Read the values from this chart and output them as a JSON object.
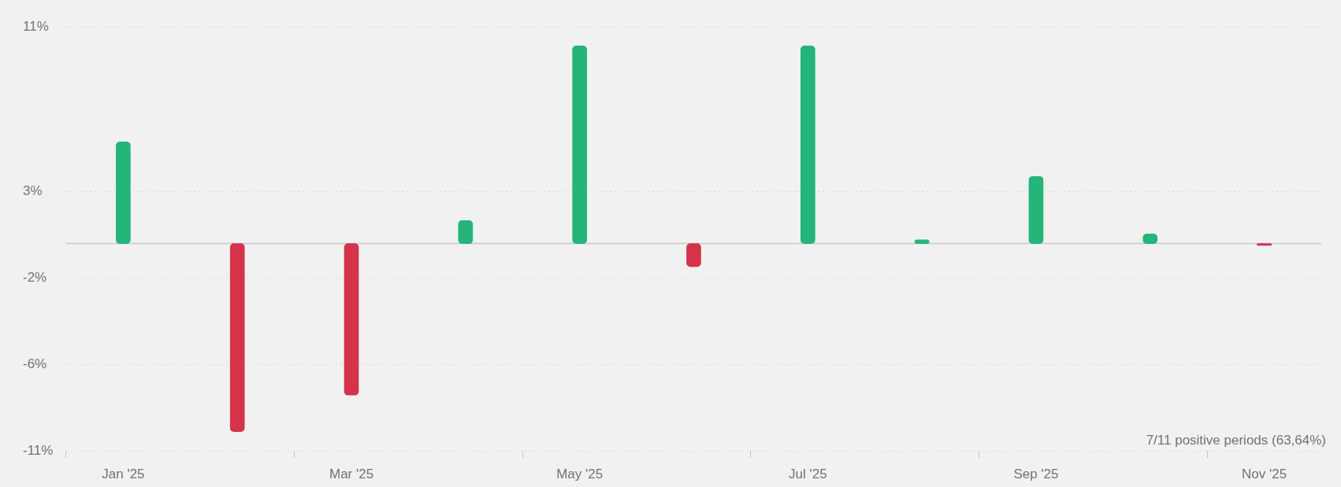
{
  "chart_data": {
    "type": "bar",
    "categories": [
      "Jan '25",
      null,
      "Mar '25",
      null,
      "May '25",
      null,
      "Jul '25",
      null,
      "Sep '25",
      null,
      "Nov '25"
    ],
    "values": [
      5.3,
      -9.8,
      -7.9,
      1.2,
      10.3,
      -1.2,
      10.3,
      0.2,
      3.5,
      0.5,
      -0.1
    ],
    "colors": [
      "#25b47a",
      "#d4334a",
      "#d4334a",
      "#25b47a",
      "#25b47a",
      "#d4334a",
      "#25b47a",
      "#25b47a",
      "#25b47a",
      "#25b47a",
      "#d4334a"
    ],
    "ylim": [
      -10.8,
      11.3
    ],
    "yticks": [
      {
        "value": -10.8,
        "label": "-11%"
      },
      {
        "value": -6.3,
        "label": "-6%"
      },
      {
        "value": -1.8,
        "label": "-2%"
      },
      {
        "value": 2.7,
        "label": "3%"
      },
      {
        "value": 11.3,
        "label": "11%"
      }
    ],
    "grid": "y",
    "ref_lines": [
      {
        "axis": "y",
        "value": 0,
        "color": "#c6c8c8"
      }
    ],
    "annotations": [
      "7/11 positive periods (63,64%)"
    ]
  }
}
